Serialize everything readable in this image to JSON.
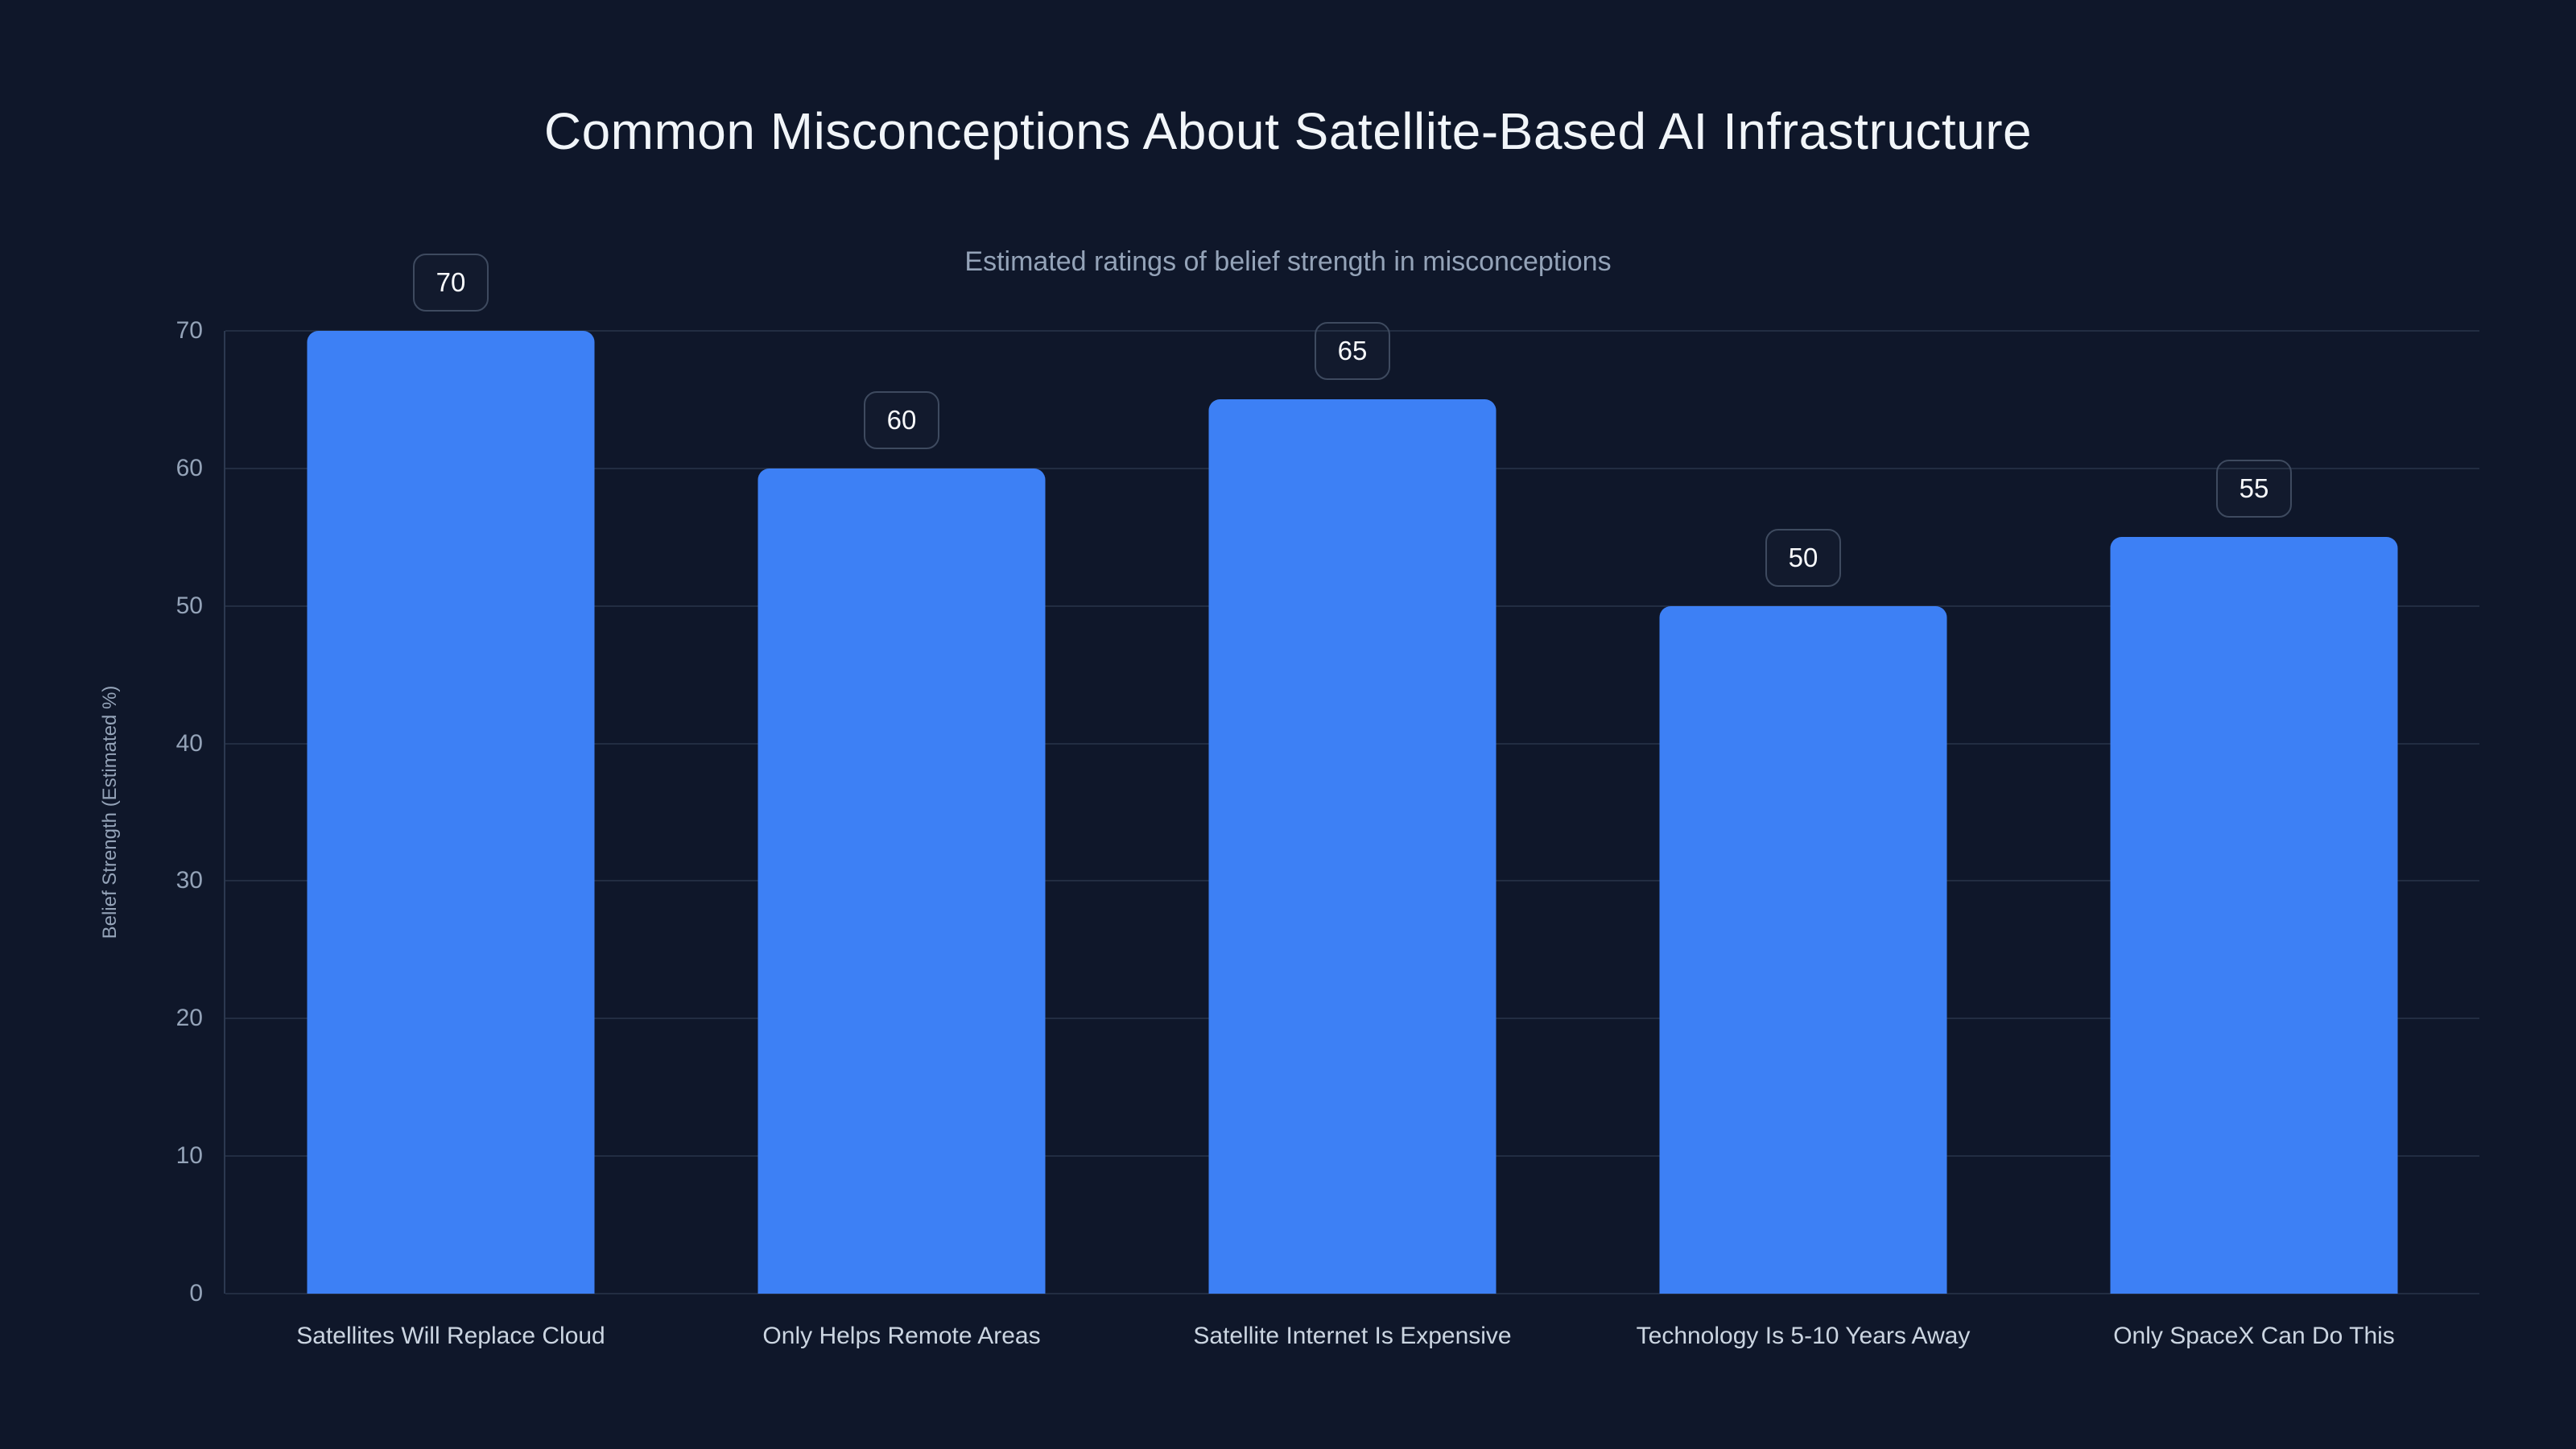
{
  "title": "Common Misconceptions About Satellite-Based AI Infrastructure",
  "subtitle": "Estimated ratings of belief strength in misconceptions",
  "colors": {
    "background": "#0f172a",
    "bar": "#3d80f5",
    "title_text": "#f1f5f9",
    "subtitle_text": "#94a3b8",
    "tick_text": "#94a3b8",
    "xlabel_text": "#cbd5e1",
    "gridline": "#222d42",
    "axis_line": "#2c3950",
    "label_box_border": "#3e4a5f",
    "label_text": "#f8fafc"
  },
  "chart_data": {
    "type": "bar",
    "title": "Common Misconceptions About Satellite-Based AI Infrastructure",
    "subtitle": "Estimated ratings of belief strength in misconceptions",
    "categories": [
      "Satellites Will Replace Cloud",
      "Only Helps Remote Areas",
      "Satellite Internet Is Expensive",
      "Technology Is 5-10 Years Away",
      "Only SpaceX Can Do This"
    ],
    "values": [
      70,
      60,
      65,
      50,
      55
    ],
    "data_labels": [
      70,
      60,
      65,
      50,
      55
    ],
    "xlabel": "",
    "ylabel": "Belief Strength (Estimated %)",
    "ylim": [
      0,
      70
    ],
    "yticks": [
      0,
      10,
      20,
      30,
      40,
      50,
      60,
      70
    ],
    "grid": true,
    "legend": false,
    "bar_color": "#3d80f5"
  }
}
